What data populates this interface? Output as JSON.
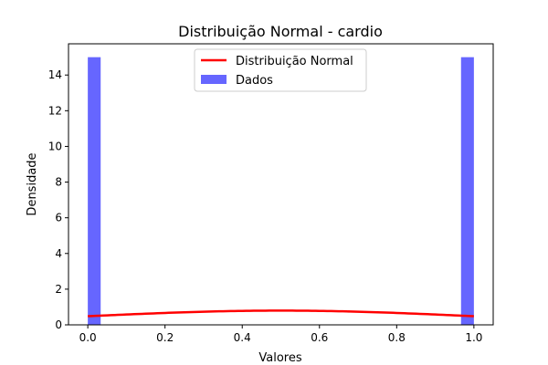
{
  "chart_data": {
    "type": "bar",
    "title": "Distribuição Normal - cardio",
    "xlabel": "Valores",
    "ylabel": "Densidade",
    "xlim": [
      -0.05,
      1.05
    ],
    "ylim": [
      0,
      15.75
    ],
    "xticks": [
      0.0,
      0.2,
      0.4,
      0.6,
      0.8,
      1.0
    ],
    "xtick_labels": [
      "0.0",
      "0.2",
      "0.4",
      "0.6",
      "0.8",
      "1.0"
    ],
    "yticks": [
      0,
      2,
      4,
      6,
      8,
      10,
      12,
      14
    ],
    "ytick_labels": [
      "0",
      "2",
      "4",
      "6",
      "8",
      "10",
      "12",
      "14"
    ],
    "grid": false,
    "legend_position": "top-center",
    "series": [
      {
        "name": "Dados",
        "type": "histogram",
        "color": "#6666ff",
        "bins": [
          {
            "x0": 0.0,
            "x1": 0.0333,
            "value": 15
          },
          {
            "x0": 0.9667,
            "x1": 1.0,
            "value": 15
          }
        ]
      },
      {
        "name": "Distribuição Normal",
        "type": "line",
        "color": "#ff0000",
        "mean": 0.5,
        "std": 0.5
      }
    ]
  }
}
